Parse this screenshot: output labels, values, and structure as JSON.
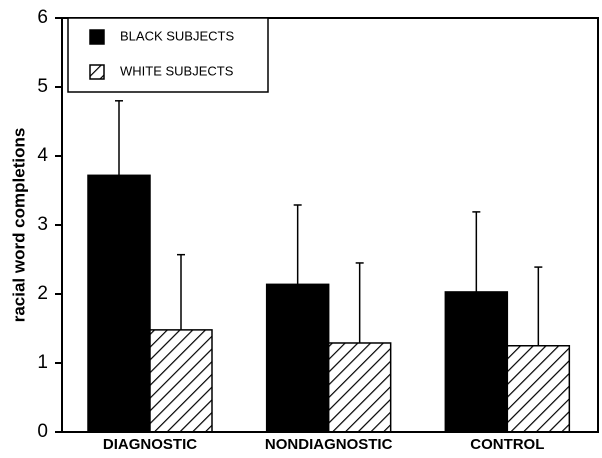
{
  "chart_data": {
    "type": "bar",
    "ylabel": "racial word completions",
    "categories": [
      "DIAGNOSTIC",
      "NONDIAGNOSTIC",
      "CONTROL"
    ],
    "series": [
      {
        "name": "BLACK SUBJECTS",
        "color": "#000000",
        "pattern": "solid",
        "values": [
          3.72,
          2.14,
          2.03
        ],
        "errors": [
          1.08,
          1.15,
          1.16
        ]
      },
      {
        "name": "WHITE SUBJECTS",
        "color": "#000000",
        "pattern": "hatch",
        "values": [
          1.48,
          1.29,
          1.25
        ],
        "errors": [
          1.09,
          1.16,
          1.14
        ]
      }
    ],
    "ylim": [
      0,
      6
    ],
    "yticks": [
      0,
      1,
      2,
      3,
      4,
      5,
      6
    ],
    "grid": false,
    "legend": "upper left"
  }
}
